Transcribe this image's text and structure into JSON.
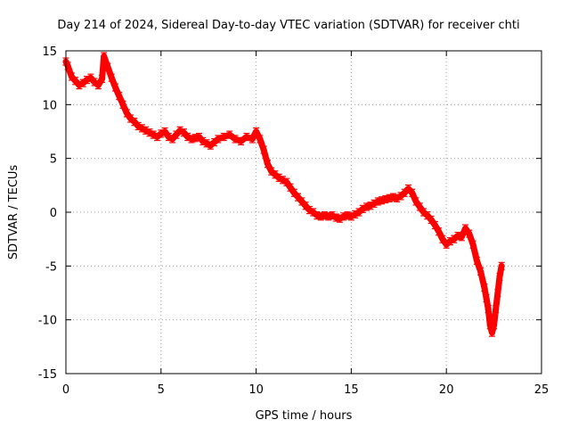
{
  "chart_data": {
    "type": "scatter",
    "title": "Day 214 of 2024, Sidereal Day-to-day VTEC variation (SDTVAR) for receiver chti",
    "xlabel": "GPS time / hours",
    "ylabel": "SDTVAR / TECUs",
    "xlim": [
      0,
      25
    ],
    "ylim": [
      -15,
      15
    ],
    "xticks": [
      0,
      5,
      10,
      15,
      20,
      25
    ],
    "yticks": [
      15,
      10,
      5,
      0,
      -5,
      -10,
      -15
    ],
    "grid": true,
    "marker": "+",
    "color": "#ff0000",
    "series": [
      {
        "name": "SDTVAR",
        "x": [
          0.0,
          0.1,
          0.3,
          0.5,
          0.7,
          0.9,
          1.1,
          1.3,
          1.5,
          1.7,
          1.9,
          2.0,
          2.2,
          2.4,
          2.6,
          2.8,
          3.0,
          3.2,
          3.4,
          3.6,
          3.8,
          4.0,
          4.2,
          4.4,
          4.6,
          4.8,
          5.0,
          5.2,
          5.4,
          5.6,
          5.8,
          6.0,
          6.2,
          6.4,
          6.6,
          6.8,
          7.0,
          7.2,
          7.4,
          7.6,
          7.8,
          8.0,
          8.3,
          8.6,
          8.9,
          9.2,
          9.5,
          9.8,
          10.0,
          10.2,
          10.4,
          10.6,
          10.8,
          11.0,
          11.2,
          11.4,
          11.6,
          11.8,
          12.0,
          12.2,
          12.4,
          12.6,
          12.8,
          13.0,
          13.2,
          13.4,
          13.6,
          13.8,
          14.0,
          14.2,
          14.4,
          14.6,
          14.8,
          15.0,
          15.2,
          15.4,
          15.6,
          15.8,
          16.0,
          16.2,
          16.4,
          16.6,
          16.8,
          17.0,
          17.2,
          17.4,
          17.6,
          17.8,
          18.0,
          18.2,
          18.4,
          18.6,
          18.8,
          19.0,
          19.2,
          19.4,
          19.6,
          19.8,
          20.0,
          20.2,
          20.4,
          20.6,
          20.8,
          21.0,
          21.2,
          21.4,
          21.6,
          21.8,
          22.0,
          22.1,
          22.2,
          22.3,
          22.4,
          22.5,
          22.6,
          22.7,
          22.8,
          22.9
        ],
        "y": [
          14.0,
          13.6,
          12.6,
          12.2,
          11.8,
          12.0,
          12.3,
          12.5,
          12.1,
          11.8,
          12.4,
          14.5,
          13.5,
          12.5,
          11.6,
          10.8,
          10.0,
          9.2,
          8.7,
          8.4,
          8.0,
          7.8,
          7.6,
          7.4,
          7.2,
          7.0,
          7.3,
          7.5,
          7.0,
          6.8,
          7.2,
          7.6,
          7.4,
          7.0,
          6.8,
          6.9,
          7.0,
          6.6,
          6.4,
          6.2,
          6.5,
          6.8,
          7.0,
          7.2,
          6.8,
          6.6,
          7.0,
          6.8,
          7.5,
          6.8,
          5.8,
          4.5,
          3.8,
          3.5,
          3.2,
          3.0,
          2.8,
          2.3,
          1.8,
          1.4,
          1.0,
          0.6,
          0.2,
          0.0,
          -0.3,
          -0.4,
          -0.3,
          -0.4,
          -0.3,
          -0.5,
          -0.6,
          -0.4,
          -0.3,
          -0.4,
          -0.2,
          0.0,
          0.3,
          0.5,
          0.6,
          0.8,
          1.0,
          1.1,
          1.2,
          1.3,
          1.4,
          1.3,
          1.5,
          1.8,
          2.2,
          1.8,
          1.0,
          0.5,
          0.0,
          -0.3,
          -0.7,
          -1.2,
          -1.8,
          -2.5,
          -3.0,
          -2.7,
          -2.5,
          -2.2,
          -2.3,
          -1.5,
          -2.0,
          -3.0,
          -4.5,
          -5.5,
          -7.0,
          -8.0,
          -9.0,
          -10.5,
          -11.2,
          -10.5,
          -9.0,
          -7.5,
          -6.0,
          -5.0
        ]
      }
    ]
  }
}
